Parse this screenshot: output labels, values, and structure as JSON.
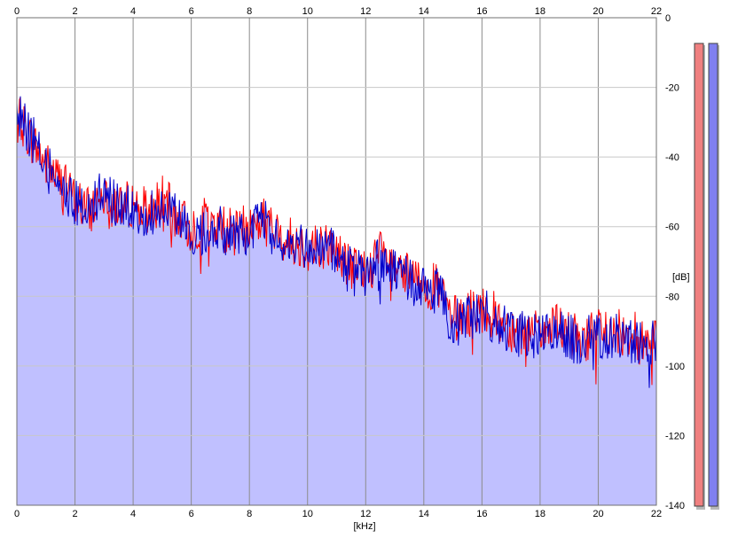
{
  "chart_data": {
    "type": "area",
    "title": "",
    "xlabel": "[kHz]",
    "ylabel": "[dB]",
    "xlim": [
      0,
      22
    ],
    "ylim": [
      -140,
      0
    ],
    "x_ticks": [
      "0",
      "2",
      "4",
      "6",
      "8",
      "10",
      "12",
      "14",
      "16",
      "18",
      "20",
      "22"
    ],
    "y_ticks": [
      "0",
      "-20",
      "-40",
      "-60",
      "-80",
      "-100",
      "-120",
      "-140"
    ],
    "grid": true,
    "series": [
      {
        "color": "#ff0000",
        "x": [
          0,
          0.5,
          1,
          1.5,
          2,
          2.5,
          3,
          3.5,
          4,
          4.5,
          5,
          5.5,
          6,
          6.5,
          7,
          7.5,
          8,
          8.5,
          9,
          9.5,
          10,
          10.5,
          11,
          11.5,
          12,
          12.5,
          13,
          13.5,
          14,
          14.5,
          15,
          15.5,
          16,
          16.5,
          17,
          17.5,
          18,
          18.5,
          19,
          19.5,
          20,
          20.5,
          21,
          21.5,
          22
        ],
        "y": [
          -28,
          -35,
          -42,
          -47,
          -52,
          -56,
          -49,
          -54,
          -53,
          -56,
          -52,
          -57,
          -61,
          -58,
          -60,
          -62,
          -60,
          -58,
          -63,
          -64,
          -66,
          -65,
          -67,
          -72,
          -73,
          -68,
          -72,
          -75,
          -76,
          -78,
          -87,
          -85,
          -83,
          -86,
          -89,
          -90,
          -91,
          -89,
          -91,
          -92,
          -90,
          -91,
          -90,
          -92,
          -93
        ]
      },
      {
        "color": "#0000cc",
        "x": [
          0,
          0.5,
          1,
          1.5,
          2,
          2.5,
          3,
          3.5,
          4,
          4.5,
          5,
          5.5,
          6,
          6.5,
          7,
          7.5,
          8,
          8.5,
          9,
          9.5,
          10,
          10.5,
          11,
          11.5,
          12,
          12.5,
          13,
          13.5,
          14,
          14.5,
          15,
          15.5,
          16,
          16.5,
          17,
          17.5,
          18,
          18.5,
          19,
          19.5,
          20,
          20.5,
          21,
          21.5,
          22
        ],
        "y": [
          -27,
          -34,
          -43,
          -48,
          -53,
          -55,
          -50,
          -55,
          -54,
          -57,
          -53,
          -58,
          -62,
          -61,
          -61,
          -63,
          -61,
          -59,
          -64,
          -65,
          -67,
          -66,
          -68,
          -73,
          -74,
          -69,
          -73,
          -76,
          -77,
          -79,
          -88,
          -86,
          -84,
          -87,
          -90,
          -91,
          -92,
          -90,
          -92,
          -93,
          -91,
          -92,
          -91,
          -93,
          -94
        ]
      }
    ],
    "fill_color": "#c0c0ff",
    "meters": [
      {
        "color": "#f08080"
      },
      {
        "color": "#8080f0"
      }
    ]
  }
}
